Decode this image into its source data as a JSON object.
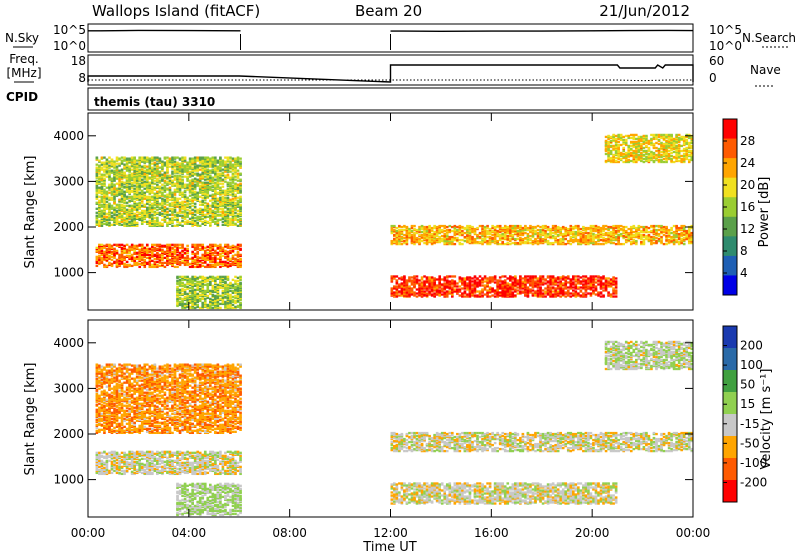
{
  "header": {
    "radar": "Wallops Island (fitACF)",
    "beam": "Beam 20",
    "date": "21/Jun/2012"
  },
  "strips": {
    "nsky_label": "N.Sky",
    "nsearch_label": "N.Search",
    "freq_label_1": "Freq.",
    "freq_label_2": "[MHz]",
    "nave_label": "Nave",
    "cpid_label": "CPID",
    "noise_left_ticks": [
      "10^5",
      "10^0"
    ],
    "noise_right_ticks": [
      "10^5",
      "10^0"
    ],
    "freq_ticks": [
      "18",
      "8"
    ],
    "nave_ticks": [
      "60",
      "0"
    ],
    "cpid_text": "themis (tau) 3310"
  },
  "panels": {
    "power": {
      "ylabel": "Slant Range [km]",
      "cbar_label": "Power [dB]"
    },
    "velocity": {
      "ylabel": "Slant Range [km]",
      "cbar_label": "Velocity [m s⁻¹]"
    }
  },
  "colors": {
    "power_scale": [
      "#0000e6",
      "#1e5fb4",
      "#2e8b6e",
      "#5aa04a",
      "#9acd32",
      "#f0e020",
      "#ffa500",
      "#ff5a00",
      "#ff0000"
    ],
    "velocity_scale": [
      "#ff0000",
      "#ff5a00",
      "#ffa500",
      "#c8c8c8",
      "#90d050",
      "#40a040",
      "#2a6aa8",
      "#1a3ab0"
    ]
  },
  "chart_data": [
    {
      "type": "line",
      "title": "Wallops Island (fitACF)",
      "ylabel_left": "N.Sky",
      "ylabel_right": "N.Search",
      "y_scale": "log",
      "ylim": [
        1,
        100000
      ],
      "segments_hours": [
        [
          0.0,
          6.05
        ],
        [
          12.0,
          24.0
        ]
      ],
      "series": [
        {
          "name": "N.Sky",
          "x": [
            0.5,
            2,
            4,
            6,
            12.5,
            14,
            16,
            18,
            20,
            21.5,
            23,
            23.9
          ],
          "y": [
            10000,
            12000,
            11000,
            10000,
            9000,
            8000,
            9000,
            9000,
            10000,
            11000,
            12000,
            11000
          ]
        }
      ]
    },
    {
      "type": "line",
      "ylabel_left": "Freq. [MHz]",
      "ylabel_right": "Nave",
      "ylim_left": [
        8,
        18
      ],
      "ylim_right": [
        0,
        60
      ],
      "series": [
        {
          "name": "Freq.",
          "x": [
            0,
            6,
            12,
            21,
            21.1,
            22.5,
            22.6,
            22.8,
            22.9,
            24
          ],
          "y": [
            11,
            11,
            16.5,
            16.5,
            15,
            15,
            16.5,
            15,
            16.5,
            16.5
          ]
        },
        {
          "name": "Nave",
          "x": [
            0,
            6,
            12,
            20,
            21,
            22,
            23,
            24
          ],
          "y": [
            6,
            6,
            6,
            6,
            6,
            4,
            6,
            6
          ]
        }
      ]
    },
    {
      "type": "heatmap",
      "xlabel": "Time UT",
      "ylabel": "Slant Range [km]",
      "x_ticks": [
        "00:00",
        "04:00",
        "08:00",
        "12:00",
        "16:00",
        "20:00",
        "00:00"
      ],
      "x_hours": [
        0,
        4,
        8,
        12,
        16,
        20,
        24
      ],
      "y_ticks": [
        1000,
        2000,
        3000,
        4000
      ],
      "ylim": [
        180,
        4500
      ],
      "colorbar": {
        "label": "Power [dB]",
        "ticks": [
          4,
          8,
          12,
          16,
          20,
          24,
          28
        ],
        "range": [
          0,
          32
        ]
      },
      "data_periods_hours": [
        [
          0,
          6
        ],
        [
          12,
          24
        ]
      ],
      "echo_bands": [
        {
          "x": [
            0.3,
            6.0
          ],
          "range_km": [
            1100,
            1600
          ],
          "level_db": 26
        },
        {
          "x": [
            0.3,
            6.0
          ],
          "range_km": [
            2000,
            3500
          ],
          "level_db": 17
        },
        {
          "x": [
            3.5,
            6.0
          ],
          "range_km": [
            200,
            900
          ],
          "level_db": 16
        },
        {
          "x": [
            12.0,
            21.0
          ],
          "range_km": [
            450,
            900
          ],
          "level_db": 29
        },
        {
          "x": [
            12.0,
            24.0
          ],
          "range_km": [
            1600,
            2000
          ],
          "level_db": 22
        },
        {
          "x": [
            20.5,
            24.0
          ],
          "range_km": [
            3400,
            4000
          ],
          "level_db": 20
        }
      ]
    },
    {
      "type": "heatmap",
      "xlabel": "Time UT",
      "ylabel": "Slant Range [km]",
      "x_ticks": [
        "00:00",
        "04:00",
        "08:00",
        "12:00",
        "16:00",
        "20:00",
        "00:00"
      ],
      "x_hours": [
        0,
        4,
        8,
        12,
        16,
        20,
        24
      ],
      "y_ticks": [
        1000,
        2000,
        3000,
        4000
      ],
      "ylim": [
        180,
        4500
      ],
      "colorbar": {
        "label": "Velocity [m s⁻¹]",
        "ticks": [
          200,
          100,
          50,
          15,
          -15,
          -50,
          -100,
          -200
        ],
        "range": [
          -250,
          250
        ]
      },
      "data_periods_hours": [
        [
          0,
          6
        ],
        [
          12,
          24
        ]
      ],
      "echo_bands": [
        {
          "x": [
            0.3,
            6.0
          ],
          "range_km": [
            1100,
            1600
          ],
          "level_ms": 0
        },
        {
          "x": [
            0.3,
            6.0
          ],
          "range_km": [
            2000,
            3500
          ],
          "level_ms": -40
        },
        {
          "x": [
            3.5,
            6.0
          ],
          "range_km": [
            200,
            900
          ],
          "level_ms": 20
        },
        {
          "x": [
            12.0,
            21.0
          ],
          "range_km": [
            450,
            900
          ],
          "level_ms": 0
        },
        {
          "x": [
            12.0,
            24.0
          ],
          "range_km": [
            1600,
            2000
          ],
          "level_ms": 0
        },
        {
          "x": [
            20.5,
            24.0
          ],
          "range_km": [
            3400,
            4000
          ],
          "level_ms": 10
        }
      ]
    }
  ]
}
